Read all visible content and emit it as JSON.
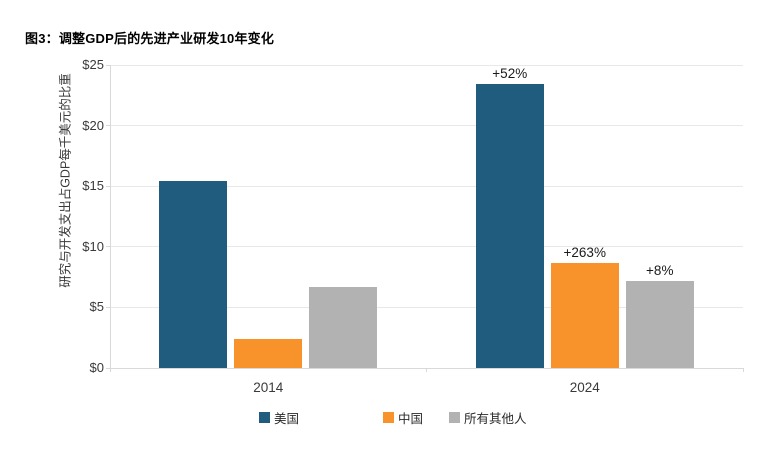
{
  "figure_title": "图3：调整GDP后的先进产业研发10年变化",
  "chart_data": {
    "type": "bar",
    "title": "图3：调整GDP后的先进产业研发10年变化",
    "ylabel": "研究与开发支出占GDP每千美元的比重",
    "xlabel": "",
    "categories": [
      "2014",
      "2024"
    ],
    "series": [
      {
        "name": "美国",
        "color": "#205C7E",
        "values": [
          15.4,
          23.4
        ]
      },
      {
        "name": "中国",
        "color": "#F8922B",
        "values": [
          2.4,
          8.7
        ]
      },
      {
        "name": "所有其他人",
        "color": "#B2B2B2",
        "values": [
          6.7,
          7.2
        ]
      }
    ],
    "annotations": [
      {
        "category_index": 1,
        "series_index": 0,
        "text": "+52%"
      },
      {
        "category_index": 1,
        "series_index": 1,
        "text": "+263%"
      },
      {
        "category_index": 1,
        "series_index": 2,
        "text": "+8%"
      }
    ],
    "y_ticks": [
      {
        "label": "$0",
        "value": 0
      },
      {
        "label": "$5",
        "value": 5
      },
      {
        "label": "$10",
        "value": 10
      },
      {
        "label": "$15",
        "value": 15
      },
      {
        "label": "$20",
        "value": 20
      },
      {
        "label": "$25",
        "value": 25
      }
    ],
    "ylim": [
      0,
      25
    ],
    "grid": true,
    "legend_position": "bottom"
  },
  "colors": {
    "gridline": "#E8E8E8",
    "axis": "#D9D9D9",
    "tick_text": "#3A3A3A",
    "annotation_text": "#1A1A1A"
  }
}
